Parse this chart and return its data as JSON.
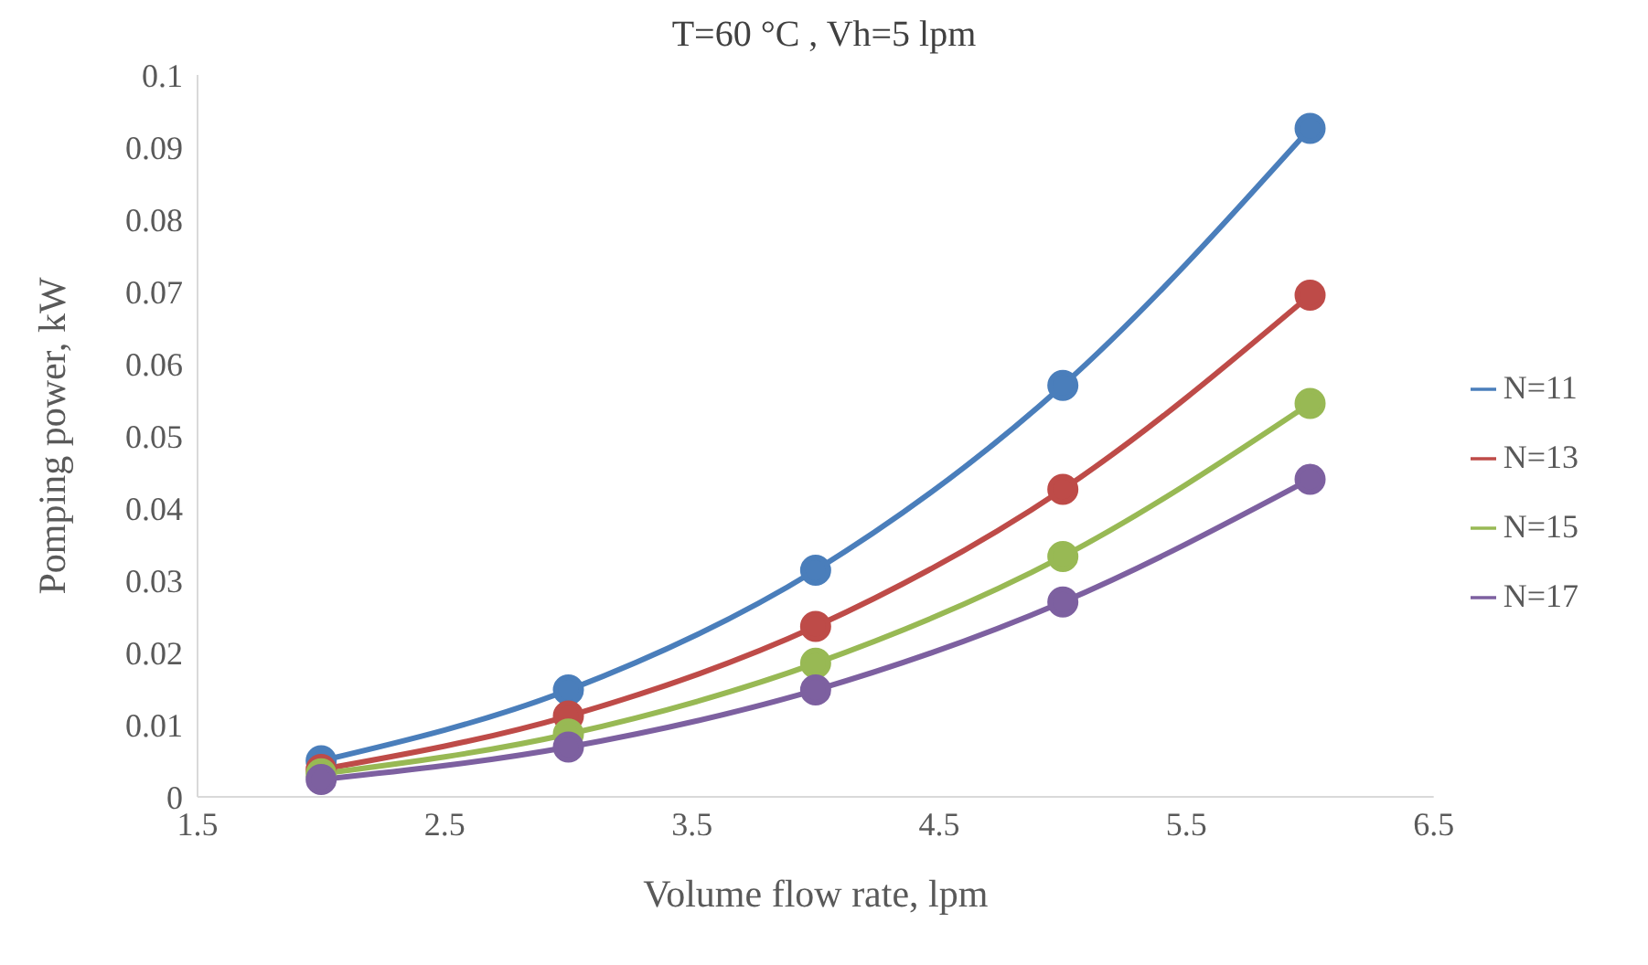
{
  "chart_data": {
    "type": "line",
    "title": "T=60 °C , Vh=5 lpm",
    "xlabel": "Volume flow rate, lpm",
    "ylabel": "Pomping power, kW",
    "x": [
      2,
      3,
      4,
      5,
      6
    ],
    "series": [
      {
        "name": "N=11",
        "color": "#4a7ebb",
        "values": [
          0.005,
          0.0148,
          0.0314,
          0.057,
          0.0926
        ]
      },
      {
        "name": "N=13",
        "color": "#be4b48",
        "values": [
          0.0038,
          0.0112,
          0.0236,
          0.0426,
          0.0695
        ]
      },
      {
        "name": "N=15",
        "color": "#98b954",
        "values": [
          0.0032,
          0.0087,
          0.0185,
          0.0333,
          0.0545
        ]
      },
      {
        "name": "N=17",
        "color": "#7d60a0",
        "values": [
          0.0024,
          0.0069,
          0.0148,
          0.027,
          0.044
        ]
      }
    ],
    "xlim": [
      1.5,
      6.5
    ],
    "xticks": [
      1.5,
      2.5,
      3.5,
      4.5,
      5.5,
      6.5
    ],
    "ylim": [
      0,
      0.1
    ],
    "yticks": [
      0,
      0.01,
      0.02,
      0.03,
      0.04,
      0.05,
      0.06,
      0.07,
      0.08,
      0.09,
      0.1
    ],
    "grid": false,
    "legend": "right",
    "marker": "circle",
    "line_style": "solid"
  }
}
